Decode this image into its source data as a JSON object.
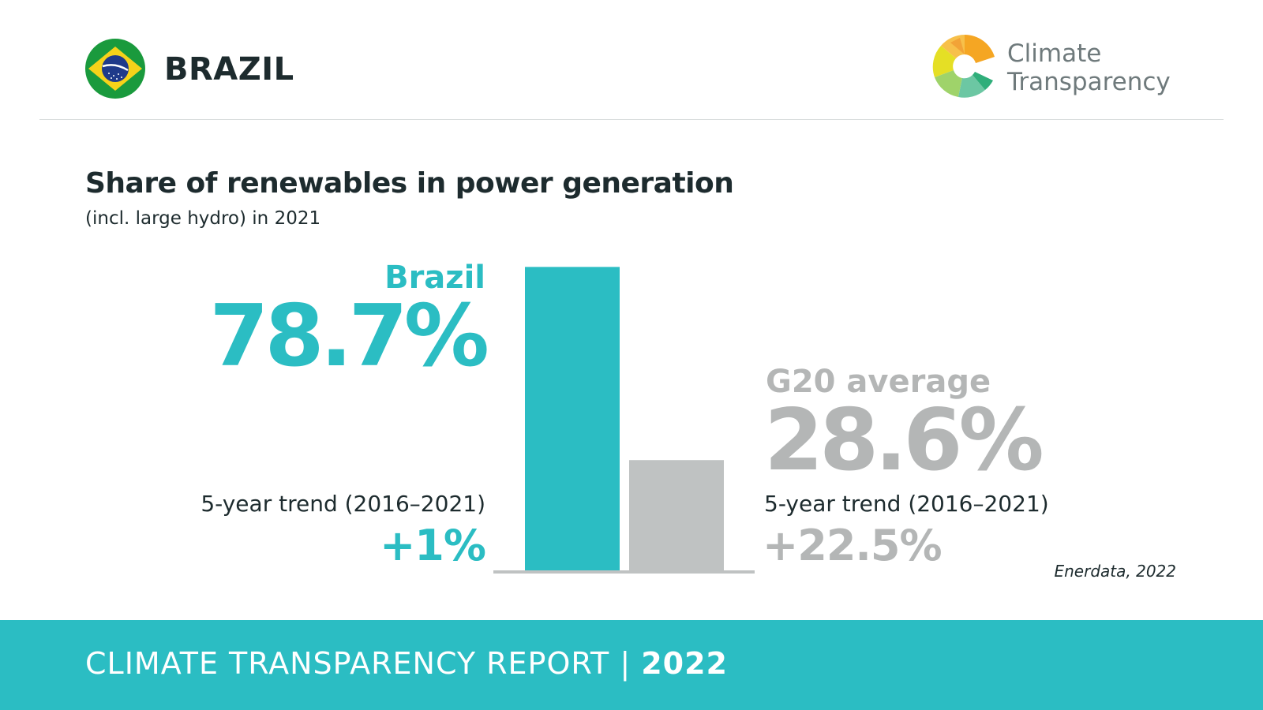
{
  "header": {
    "country": "BRAZIL",
    "flag_icon": "brazil-flag-icon",
    "brand_line1": "Climate",
    "brand_line2": "Transparency"
  },
  "chart_data": {
    "type": "bar",
    "title": "Share of renewables in power generation",
    "subtitle": "(incl. large hydro) in 2021",
    "unit": "%",
    "categories": [
      "Brazil",
      "G20 average"
    ],
    "values": [
      78.7,
      28.6
    ],
    "value_labels": [
      "78.7%",
      "28.6%"
    ],
    "trend_label": "5-year trend (2016–2021)",
    "trends": [
      "+1%",
      "+22.5%"
    ],
    "colors": [
      "#2bbdc3",
      "#bfc2c2"
    ],
    "ylim": [
      0,
      80
    ],
    "grid": false,
    "source": "Enerdata, 2022"
  },
  "footer": {
    "report": "CLIMATE TRANSPARENCY REPORT",
    "separator": "|",
    "year": "2022"
  }
}
